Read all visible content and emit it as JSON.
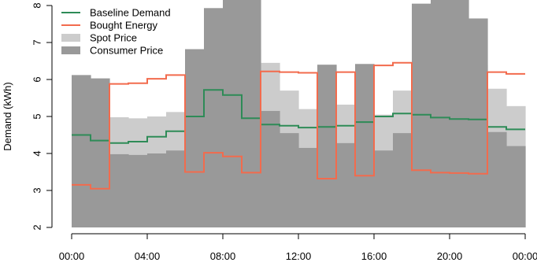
{
  "chart_data": {
    "type": "line",
    "title": "",
    "xlabel": "",
    "ylabel": "Demand (kWh)",
    "ylim": [
      2,
      8
    ],
    "xlim": [
      0,
      24
    ],
    "x_ticks": [
      0,
      4,
      8,
      12,
      16,
      20,
      24
    ],
    "x_tick_labels": [
      "00:00",
      "04:00",
      "08:00",
      "12:00",
      "16:00",
      "20:00",
      "00:00"
    ],
    "y_ticks": [
      2,
      3,
      4,
      5,
      6,
      7,
      8
    ],
    "y_tick_labels": [
      "2",
      "3",
      "4",
      "5",
      "6",
      "7",
      "8"
    ],
    "hours": [
      0,
      1,
      2,
      3,
      4,
      5,
      6,
      7,
      8,
      9,
      10,
      11,
      12,
      13,
      14,
      15,
      16,
      17,
      18,
      19,
      20,
      21,
      22,
      23
    ],
    "legend_position": "top-left",
    "series": [
      {
        "name": "Baseline Demand",
        "style": "step",
        "color": "#2e8b57",
        "values": [
          4.5,
          4.35,
          4.28,
          4.32,
          4.45,
          4.6,
          5.0,
          5.72,
          5.58,
          4.95,
          4.78,
          4.75,
          4.7,
          4.72,
          4.75,
          4.85,
          5.0,
          5.08,
          5.05,
          4.97,
          4.93,
          4.92,
          4.72,
          4.65
        ]
      },
      {
        "name": "Bought Energy",
        "style": "step",
        "color": "#f26b4d",
        "values": [
          3.15,
          3.05,
          5.88,
          5.9,
          6.02,
          6.12,
          3.5,
          4.02,
          3.92,
          3.48,
          6.22,
          6.2,
          6.18,
          3.32,
          6.2,
          3.4,
          6.38,
          6.45,
          3.55,
          3.48,
          3.47,
          3.45,
          6.2,
          6.15
        ]
      },
      {
        "name": "Spot Price",
        "style": "area",
        "color": "#cccccc",
        "values": [
          5.4,
          5.4,
          4.98,
          4.95,
          5.0,
          5.12,
          6.0,
          7.2,
          7.1,
          6.8,
          6.45,
          5.7,
          5.2,
          5.1,
          5.32,
          5.9,
          5.05,
          5.7,
          7.2,
          7.3,
          7.5,
          6.4,
          5.75,
          5.28
        ]
      },
      {
        "name": "Consumer Price",
        "style": "area",
        "color": "#999999",
        "values": [
          6.12,
          6.03,
          3.98,
          3.96,
          4.0,
          4.08,
          6.82,
          7.93,
          8.2,
          8.2,
          5.15,
          4.55,
          4.15,
          6.4,
          4.28,
          6.42,
          4.08,
          4.55,
          8.05,
          8.2,
          8.2,
          7.65,
          4.58,
          4.2
        ]
      }
    ]
  }
}
